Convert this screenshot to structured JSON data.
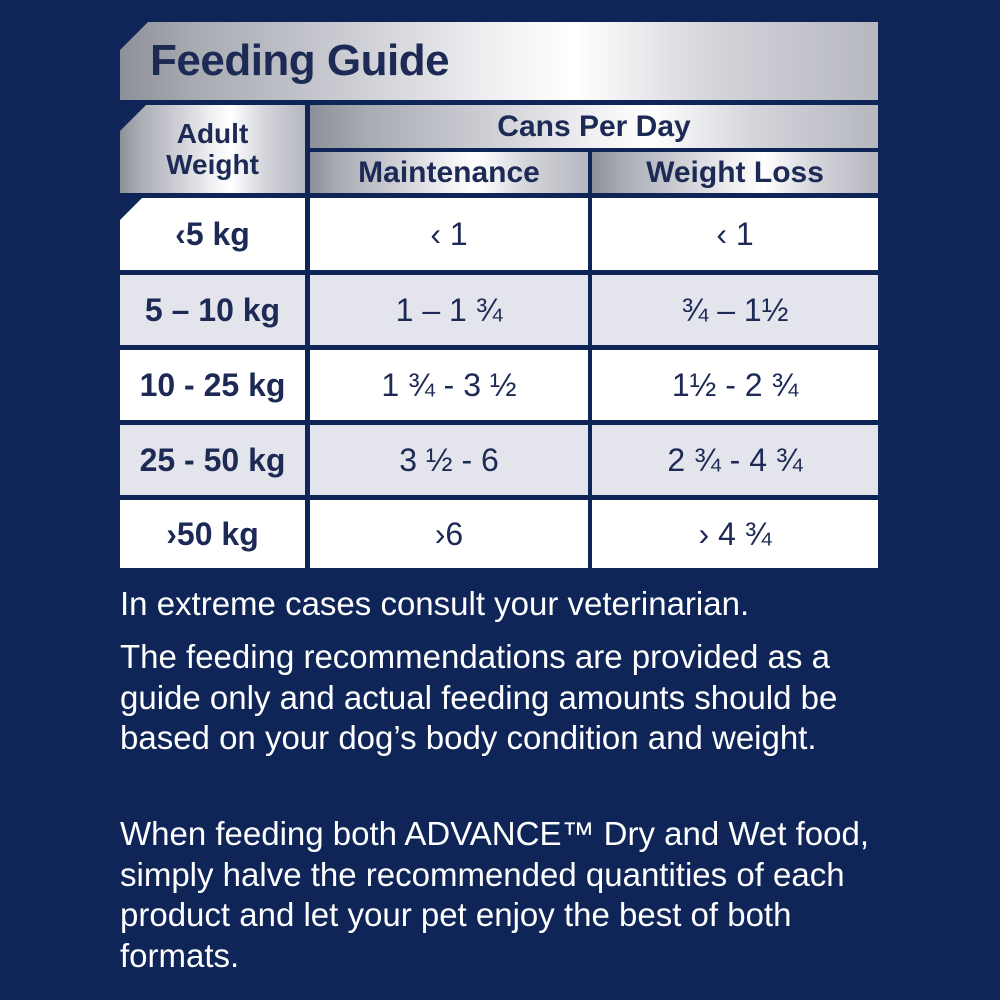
{
  "title": "Feeding Guide",
  "table": {
    "header_weight_line1": "Adult",
    "header_weight_line2": "Weight",
    "header_cans": "Cans Per Day",
    "header_maintenance": "Maintenance",
    "header_weight_loss": "Weight Loss",
    "rows": [
      {
        "weight": "‹5 kg",
        "maintenance": "‹ 1",
        "weight_loss": "‹ 1"
      },
      {
        "weight": "5 – 10 kg",
        "maintenance": "1 – 1 ¾",
        "weight_loss": "¾ – 1½"
      },
      {
        "weight": "10 - 25 kg",
        "maintenance": "1 ¾ - 3 ½",
        "weight_loss": "1½ - 2 ¾"
      },
      {
        "weight": "25 - 50 kg",
        "maintenance": "3 ½ - 6",
        "weight_loss": "2 ¾ - 4 ¾"
      },
      {
        "weight": "›50 kg",
        "maintenance": "›6",
        "weight_loss": "› 4 ¾"
      }
    ]
  },
  "notes": [
    "In extreme cases consult your veterinarian.",
    "The feeding recommendations are provided as a guide only and actual feeding amounts should be based on your dog’s body condition and weight.",
    "When feeding both ADVANCE™ Dry and Wet food, simply halve the recommended quantities of each product and let your pet enjoy the best of both formats."
  ],
  "colors": {
    "background": "#0f2558",
    "text_dark": "#1c2a55",
    "row_alt": "#e4e5ec"
  }
}
